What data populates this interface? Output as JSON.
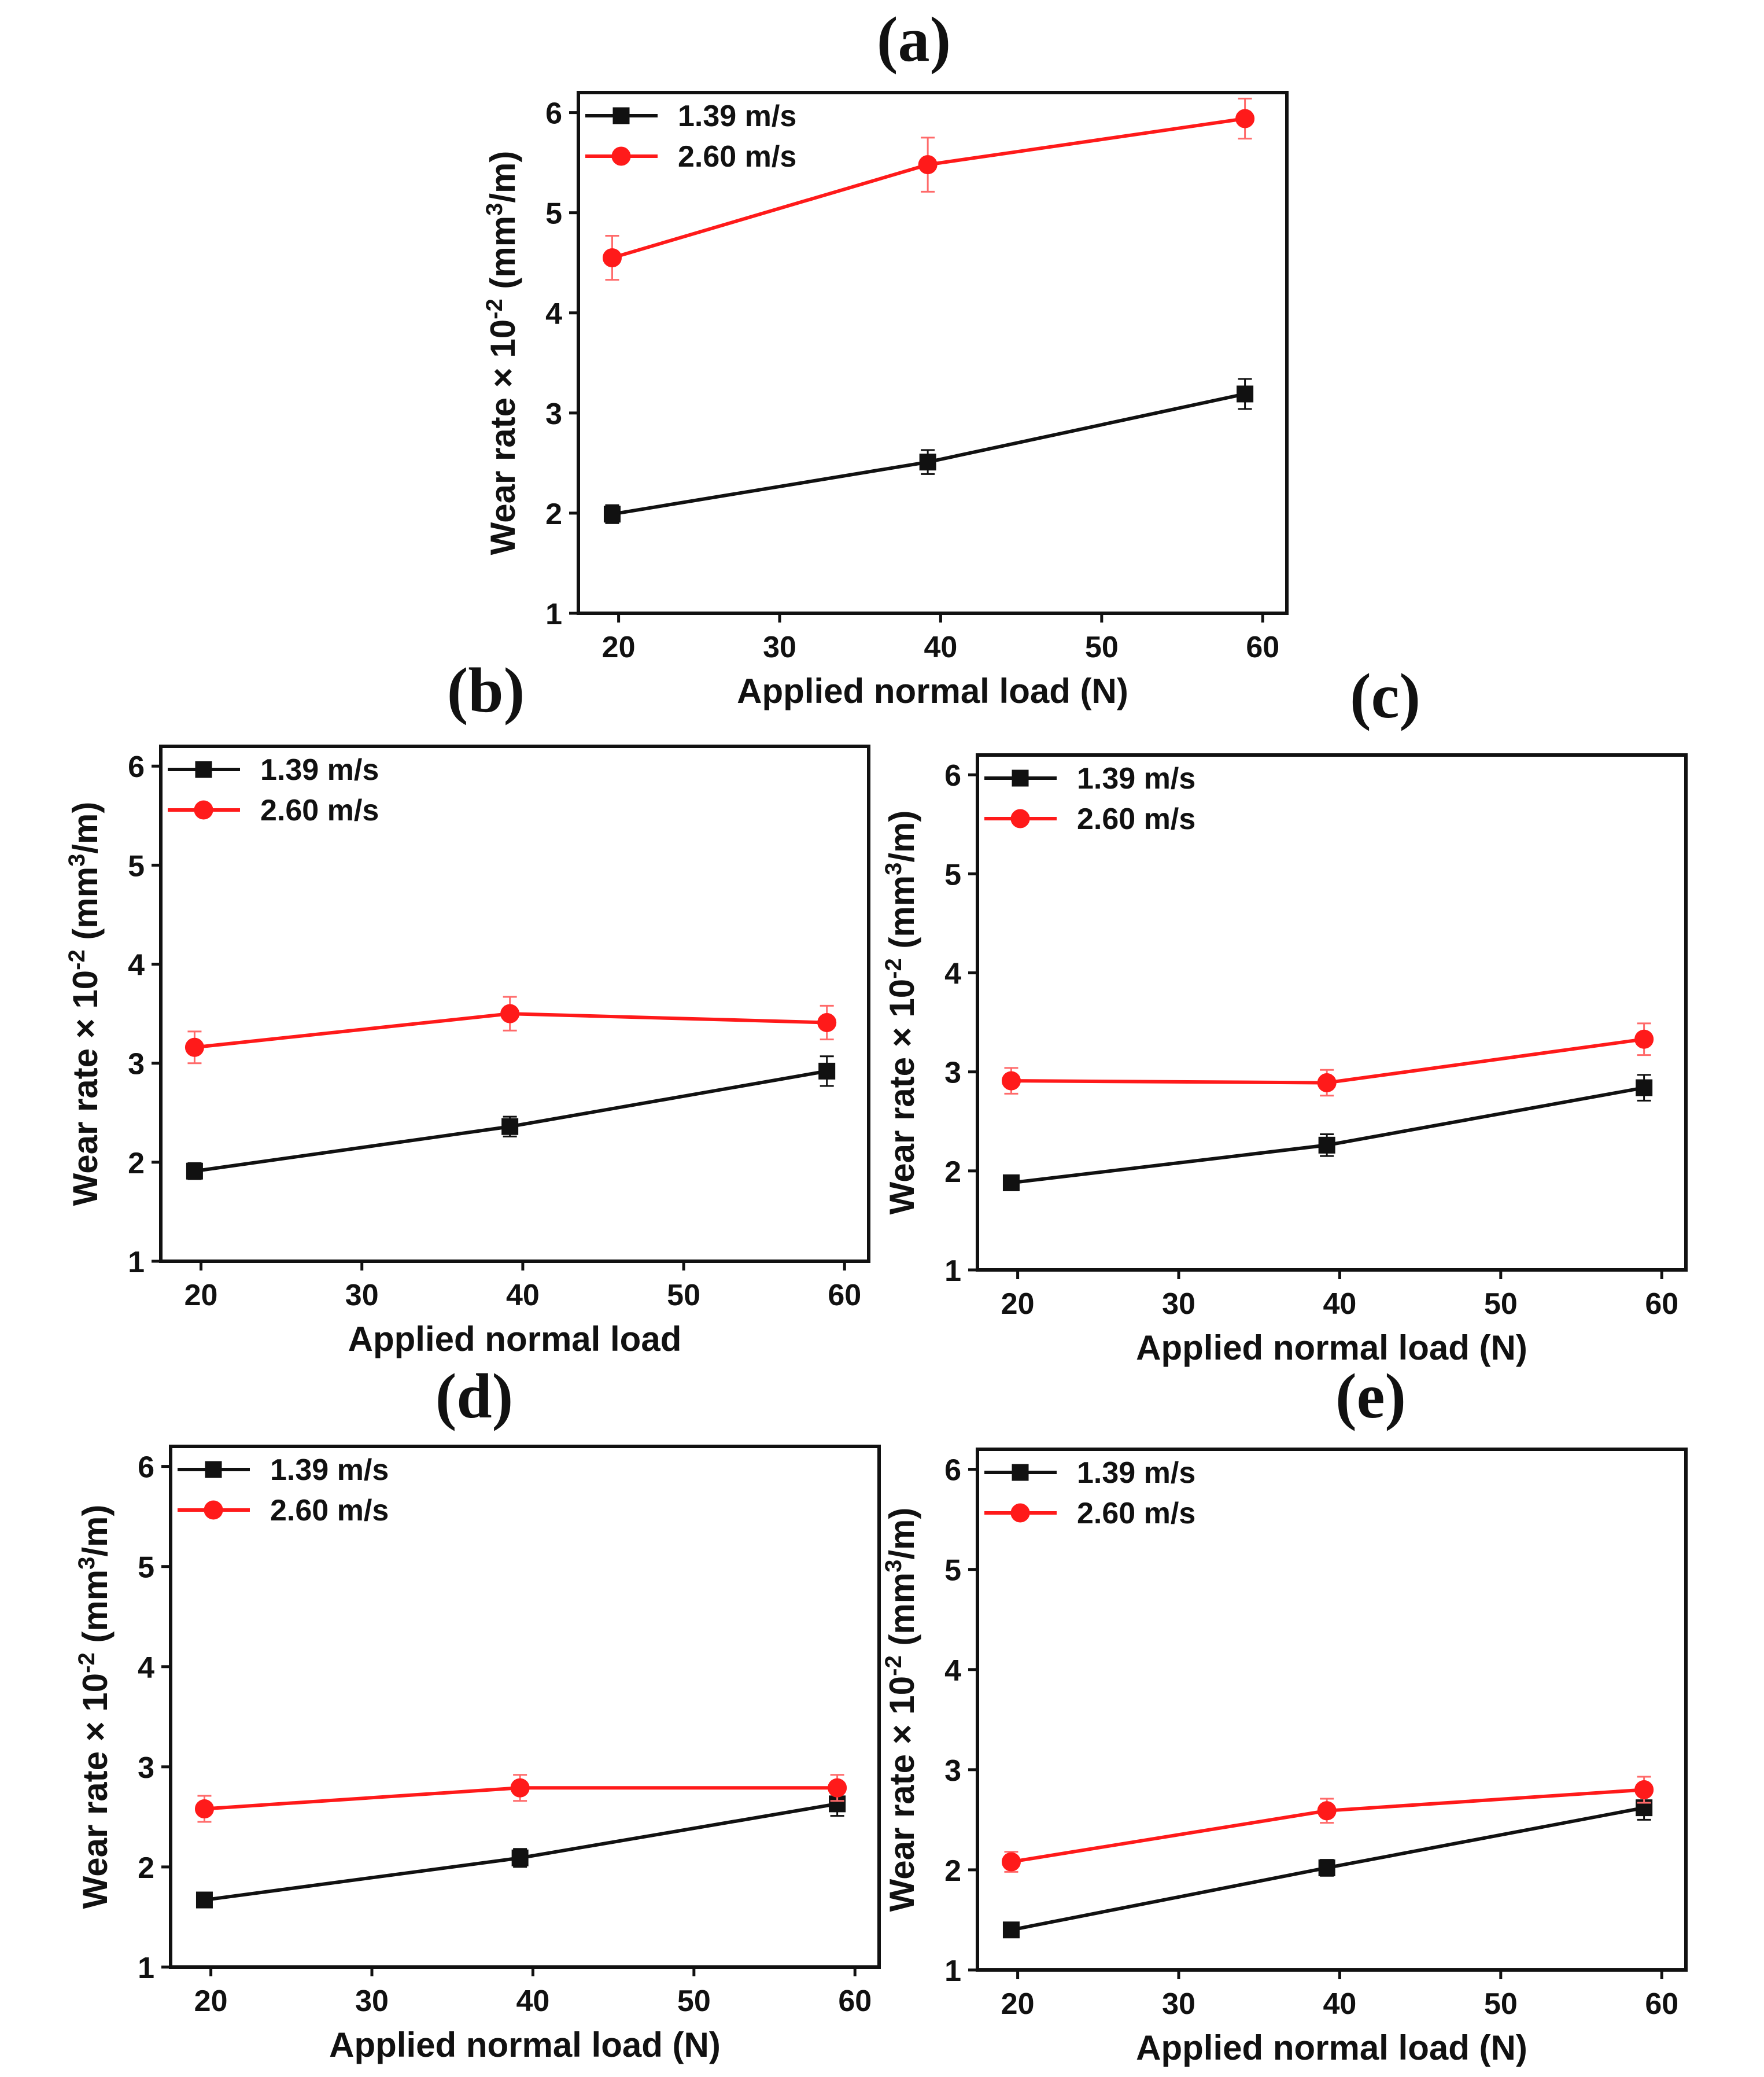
{
  "colors": {
    "series_1": "#111111",
    "series_2": "#ff1a1a",
    "errorbar_2": "#ff6a6a"
  },
  "chart_data": [
    {
      "panel": "(a)",
      "type": "line",
      "xlabel": "Applied normal load (N)",
      "ylabel": "Wear rate × 10⁻² (mm³/m)",
      "xlim": [
        17.5,
        61.5
      ],
      "ylim": [
        1,
        6.2
      ],
      "xticks": [
        20,
        30,
        40,
        50,
        60
      ],
      "yticks": [
        1,
        2,
        3,
        4,
        5,
        6
      ],
      "legend_position": "top-left",
      "series": [
        {
          "name": "1.39 m/s",
          "marker": "square",
          "x": [
            19.6,
            39.2,
            58.9
          ],
          "y": [
            1.99,
            2.51,
            3.19
          ],
          "err": [
            0.09,
            0.12,
            0.15
          ]
        },
        {
          "name": "2.60 m/s",
          "marker": "circle",
          "x": [
            19.6,
            39.2,
            58.9
          ],
          "y": [
            4.55,
            5.48,
            5.94
          ],
          "err": [
            0.22,
            0.27,
            0.2
          ]
        }
      ]
    },
    {
      "panel": "(b)",
      "type": "line",
      "xlabel": "Applied normal load",
      "ylabel": "Wear rate × 10⁻² (mm³/m)",
      "xlim": [
        17.5,
        61.5
      ],
      "ylim": [
        1,
        6.2
      ],
      "xticks": [
        20,
        30,
        40,
        50,
        60
      ],
      "yticks": [
        1,
        2,
        3,
        4,
        5,
        6
      ],
      "legend_position": "top-left",
      "series": [
        {
          "name": "1.39 m/s",
          "marker": "square",
          "x": [
            19.6,
            39.2,
            58.9
          ],
          "y": [
            1.91,
            2.36,
            2.92
          ],
          "err": [
            0.08,
            0.1,
            0.15
          ]
        },
        {
          "name": "2.60 m/s",
          "marker": "circle",
          "x": [
            19.6,
            39.2,
            58.9
          ],
          "y": [
            3.16,
            3.5,
            3.41
          ],
          "err": [
            0.16,
            0.17,
            0.17
          ]
        }
      ]
    },
    {
      "panel": "(c)",
      "type": "line",
      "xlabel": "Applied normal load (N)",
      "ylabel": "Wear rate × 10⁻² (mm³/m)",
      "xlim": [
        17.5,
        61.5
      ],
      "ylim": [
        1,
        6.2
      ],
      "xticks": [
        20,
        30,
        40,
        50,
        60
      ],
      "yticks": [
        1,
        2,
        3,
        4,
        5,
        6
      ],
      "legend_position": "top-left",
      "series": [
        {
          "name": "1.39 m/s",
          "marker": "square",
          "x": [
            19.6,
            39.2,
            58.9
          ],
          "y": [
            1.88,
            2.26,
            2.84
          ],
          "err": [
            0.07,
            0.11,
            0.13
          ]
        },
        {
          "name": "2.60 m/s",
          "marker": "circle",
          "x": [
            19.6,
            39.2,
            58.9
          ],
          "y": [
            2.91,
            2.89,
            3.33
          ],
          "err": [
            0.13,
            0.13,
            0.16
          ]
        }
      ]
    },
    {
      "panel": "(d)",
      "type": "line",
      "xlabel": "Applied normal load (N)",
      "ylabel": "Wear rate × 10⁻² (mm³/m)",
      "xlim": [
        17.5,
        61.5
      ],
      "ylim": [
        1,
        6.2
      ],
      "xticks": [
        20,
        30,
        40,
        50,
        60
      ],
      "yticks": [
        1,
        2,
        3,
        4,
        5,
        6
      ],
      "legend_position": "top-left",
      "series": [
        {
          "name": "1.39 m/s",
          "marker": "square",
          "x": [
            19.6,
            39.2,
            58.9
          ],
          "y": [
            1.67,
            2.09,
            2.63
          ],
          "err": [
            0.06,
            0.09,
            0.12
          ]
        },
        {
          "name": "2.60 m/s",
          "marker": "circle",
          "x": [
            19.6,
            39.2,
            58.9
          ],
          "y": [
            2.58,
            2.79,
            2.79
          ],
          "err": [
            0.13,
            0.13,
            0.13
          ]
        }
      ]
    },
    {
      "panel": "(e)",
      "type": "line",
      "xlabel": "Applied normal load (N)",
      "ylabel": "Wear rate × 10⁻² (mm³/m)",
      "xlim": [
        17.5,
        61.5
      ],
      "ylim": [
        1,
        6.2
      ],
      "xticks": [
        20,
        30,
        40,
        50,
        60
      ],
      "yticks": [
        1,
        2,
        3,
        4,
        5,
        6
      ],
      "legend_position": "top-left",
      "series": [
        {
          "name": "1.39 m/s",
          "marker": "square",
          "x": [
            19.6,
            39.2,
            58.9
          ],
          "y": [
            1.4,
            2.02,
            2.62
          ],
          "err": [
            0.05,
            0.08,
            0.12
          ]
        },
        {
          "name": "2.60 m/s",
          "marker": "circle",
          "x": [
            19.6,
            39.2,
            58.9
          ],
          "y": [
            2.08,
            2.59,
            2.8
          ],
          "err": [
            0.1,
            0.12,
            0.13
          ]
        }
      ]
    }
  ]
}
